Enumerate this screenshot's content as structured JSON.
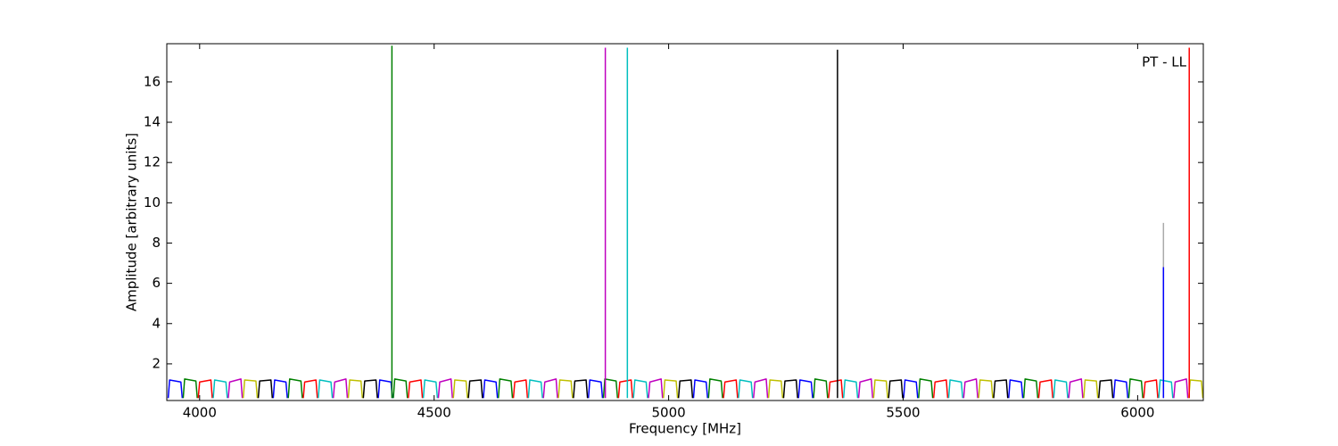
{
  "chart_data": {
    "type": "line",
    "xlabel": "Frequency [MHz]",
    "ylabel": "Amplitude [arbitrary units]",
    "annotation": "PT - LL",
    "xlim": [
      3930,
      6140
    ],
    "ylim": [
      0.18,
      17.9
    ],
    "xticks": [
      4000,
      4500,
      5000,
      5500,
      6000
    ],
    "yticks": [
      2,
      4,
      6,
      8,
      10,
      12,
      14,
      16
    ],
    "series": [
      {
        "color": "#0000ff",
        "x": [
          3933,
          3936,
          3960,
          3963,
          3964,
          4157,
          4160,
          4184,
          4187,
          4188,
          4381,
          4384,
          4408,
          4411,
          4412,
          4605,
          4608,
          4632,
          4635,
          4636,
          4829,
          4832,
          4856,
          4859,
          4860,
          5053,
          5056,
          5080,
          5083,
          5084,
          5277,
          5280,
          5304,
          5307,
          5308,
          5501,
          5504,
          5528,
          5531,
          5532,
          5725,
          5728,
          5752,
          5755,
          5756,
          5949,
          5952,
          5976,
          5979
        ],
        "values": [
          0.3,
          1.2,
          1.1,
          0.3,
          null,
          0.3,
          1.2,
          1.1,
          0.3,
          null,
          0.3,
          1.2,
          1.1,
          0.3,
          null,
          0.3,
          1.2,
          1.1,
          0.3,
          null,
          0.3,
          1.2,
          1.1,
          0.3,
          null,
          0.3,
          1.2,
          1.1,
          0.3,
          null,
          0.3,
          1.2,
          1.1,
          0.3,
          null,
          0.3,
          1.2,
          1.1,
          0.3,
          null,
          0.3,
          1.2,
          1.1,
          0.3,
          null,
          0.3,
          1.2,
          1.1,
          0.3
        ]
      },
      {
        "color": "#008000",
        "x": [
          3965,
          3968,
          3992,
          3995,
          3996,
          4189,
          4192,
          4216,
          4219,
          4220,
          4413,
          4416,
          4440,
          4443,
          4444,
          4637,
          4640,
          4664,
          4667,
          4668,
          4861,
          4864,
          4888,
          4891,
          4892,
          5085,
          5088,
          5112,
          5115,
          5116,
          5309,
          5312,
          5336,
          5339,
          5340,
          5533,
          5536,
          5560,
          5563,
          5564,
          5757,
          5760,
          5784,
          5787,
          5788,
          5981,
          5984,
          6008,
          6011
        ],
        "values": [
          0.3,
          1.25,
          1.15,
          0.3,
          null,
          0.3,
          1.25,
          1.15,
          0.3,
          null,
          0.3,
          1.25,
          1.15,
          0.3,
          null,
          0.3,
          1.25,
          1.15,
          0.3,
          null,
          0.3,
          1.25,
          1.15,
          0.3,
          null,
          0.3,
          1.25,
          1.15,
          0.3,
          null,
          0.3,
          1.25,
          1.15,
          0.3,
          null,
          0.3,
          1.25,
          1.15,
          0.3,
          null,
          0.3,
          1.25,
          1.15,
          0.3,
          null,
          0.3,
          1.25,
          1.15,
          0.3
        ]
      },
      {
        "color": "#ff0000",
        "x": [
          3997,
          4000,
          4024,
          4027,
          4028,
          4221,
          4224,
          4248,
          4251,
          4252,
          4445,
          4448,
          4472,
          4475,
          4476,
          4669,
          4672,
          4696,
          4699,
          4700,
          4893,
          4896,
          4920,
          4923,
          4924,
          5117,
          5120,
          5144,
          5147,
          5148,
          5341,
          5344,
          5368,
          5371,
          5372,
          5565,
          5568,
          5592,
          5595,
          5596,
          5789,
          5792,
          5816,
          5819,
          5820,
          6013,
          6016,
          6040,
          6043
        ],
        "values": [
          0.3,
          1.1,
          1.2,
          0.3,
          null,
          0.3,
          1.1,
          1.2,
          0.3,
          null,
          0.3,
          1.1,
          1.2,
          0.3,
          null,
          0.3,
          1.1,
          1.2,
          0.3,
          null,
          0.3,
          1.1,
          1.2,
          0.3,
          null,
          0.3,
          1.1,
          1.2,
          0.3,
          null,
          0.3,
          1.1,
          1.2,
          0.3,
          null,
          0.3,
          1.1,
          1.2,
          0.3,
          null,
          0.3,
          1.1,
          1.2,
          0.3,
          null,
          0.3,
          1.1,
          1.2,
          0.3
        ]
      },
      {
        "color": "#00bfbf",
        "x": [
          4029,
          4032,
          4056,
          4059,
          4060,
          4253,
          4256,
          4280,
          4283,
          4284,
          4477,
          4480,
          4504,
          4507,
          4508,
          4701,
          4704,
          4728,
          4731,
          4732,
          4925,
          4928,
          4952,
          4955,
          4956,
          5149,
          5152,
          5176,
          5179,
          5180,
          5373,
          5376,
          5400,
          5403,
          5404,
          5597,
          5600,
          5624,
          5627,
          5628,
          5821,
          5824,
          5848,
          5851,
          5852,
          6045,
          6048,
          6072,
          6075
        ],
        "values": [
          0.3,
          1.2,
          1.1,
          0.3,
          null,
          0.3,
          1.2,
          1.1,
          0.3,
          null,
          0.3,
          1.2,
          1.1,
          0.3,
          null,
          0.3,
          1.2,
          1.1,
          0.3,
          null,
          0.3,
          1.2,
          1.1,
          0.3,
          null,
          0.3,
          1.2,
          1.1,
          0.3,
          null,
          0.3,
          1.2,
          1.1,
          0.3,
          null,
          0.3,
          1.2,
          1.1,
          0.3,
          null,
          0.3,
          1.2,
          1.1,
          0.3,
          null,
          0.3,
          1.2,
          1.1,
          0.3
        ]
      },
      {
        "color": "#bf00bf",
        "x": [
          4061,
          4064,
          4088,
          4091,
          4092,
          4285,
          4288,
          4312,
          4315,
          4316,
          4509,
          4512,
          4536,
          4539,
          4540,
          4733,
          4736,
          4760,
          4763,
          4764,
          4957,
          4960,
          4984,
          4987,
          4988,
          5181,
          5184,
          5208,
          5211,
          5212,
          5405,
          5408,
          5432,
          5435,
          5436,
          5629,
          5632,
          5656,
          5659,
          5660,
          5853,
          5856,
          5880,
          5883,
          5884,
          6077,
          6080,
          6104,
          6107
        ],
        "values": [
          0.3,
          1.1,
          1.25,
          0.3,
          null,
          0.3,
          1.1,
          1.25,
          0.3,
          null,
          0.3,
          1.1,
          1.25,
          0.3,
          null,
          0.3,
          1.1,
          1.25,
          0.3,
          null,
          0.3,
          1.1,
          1.25,
          0.3,
          null,
          0.3,
          1.1,
          1.25,
          0.3,
          null,
          0.3,
          1.1,
          1.25,
          0.3,
          null,
          0.3,
          1.1,
          1.25,
          0.3,
          null,
          0.3,
          1.1,
          1.25,
          0.3,
          null,
          0.3,
          1.1,
          1.25,
          0.3
        ]
      },
      {
        "color": "#bfbf00",
        "x": [
          4093,
          4096,
          4120,
          4123,
          4124,
          4317,
          4320,
          4344,
          4347,
          4348,
          4541,
          4544,
          4568,
          4571,
          4572,
          4765,
          4768,
          4792,
          4795,
          4796,
          4989,
          4992,
          5016,
          5019,
          5020,
          5213,
          5216,
          5240,
          5243,
          5244,
          5437,
          5440,
          5464,
          5467,
          5468,
          5661,
          5664,
          5688,
          5691,
          5692,
          5885,
          5888,
          5912,
          5915,
          5916,
          6109,
          6112,
          6136,
          6139
        ],
        "values": [
          0.3,
          1.2,
          1.15,
          0.3,
          null,
          0.3,
          1.2,
          1.15,
          0.3,
          null,
          0.3,
          1.2,
          1.15,
          0.3,
          null,
          0.3,
          1.2,
          1.15,
          0.3,
          null,
          0.3,
          1.2,
          1.15,
          0.3,
          null,
          0.3,
          1.2,
          1.15,
          0.3,
          null,
          0.3,
          1.2,
          1.15,
          0.3,
          null,
          0.3,
          1.2,
          1.15,
          0.3,
          null,
          0.3,
          1.2,
          1.15,
          0.3,
          null,
          0.3,
          1.2,
          1.15,
          0.3
        ]
      },
      {
        "color": "#000000",
        "x": [
          4125,
          4128,
          4152,
          4155,
          4156,
          4349,
          4352,
          4376,
          4379,
          4380,
          4573,
          4576,
          4600,
          4603,
          4604,
          4797,
          4800,
          4824,
          4827,
          4828,
          5021,
          5024,
          5048,
          5051,
          5052,
          5245,
          5248,
          5272,
          5275,
          5276,
          5469,
          5472,
          5496,
          5499,
          5500,
          5693,
          5696,
          5720,
          5723,
          5724,
          5917,
          5920,
          5944,
          5947
        ],
        "values": [
          0.3,
          1.15,
          1.2,
          0.3,
          null,
          0.3,
          1.15,
          1.2,
          0.3,
          null,
          0.3,
          1.15,
          1.2,
          0.3,
          null,
          0.3,
          1.15,
          1.2,
          0.3,
          null,
          0.3,
          1.15,
          1.2,
          0.3,
          null,
          0.3,
          1.15,
          1.2,
          0.3,
          null,
          0.3,
          1.15,
          1.2,
          0.3,
          null,
          0.3,
          1.15,
          1.2,
          0.3,
          null,
          0.3,
          1.15,
          1.2,
          0.3
        ]
      },
      {
        "color": "#008000",
        "x": [
          4410,
          4410
        ],
        "values": [
          0.3,
          17.8
        ]
      },
      {
        "color": "#bf00bf",
        "x": [
          4865,
          4865
        ],
        "values": [
          0.3,
          17.7
        ]
      },
      {
        "color": "#00bfbf",
        "x": [
          4912,
          4912
        ],
        "values": [
          0.3,
          17.7
        ]
      },
      {
        "color": "#000000",
        "x": [
          5360,
          5360
        ],
        "values": [
          0.3,
          17.6
        ]
      },
      {
        "color": "#aaaaaa",
        "x": [
          6055,
          6055
        ],
        "values": [
          0.3,
          9.0
        ]
      },
      {
        "color": "#0000ff",
        "x": [
          6055,
          6055
        ],
        "values": [
          0.3,
          6.8
        ]
      },
      {
        "color": "#ff0000",
        "x": [
          6110,
          6110
        ],
        "values": [
          0.3,
          17.7
        ]
      }
    ]
  }
}
